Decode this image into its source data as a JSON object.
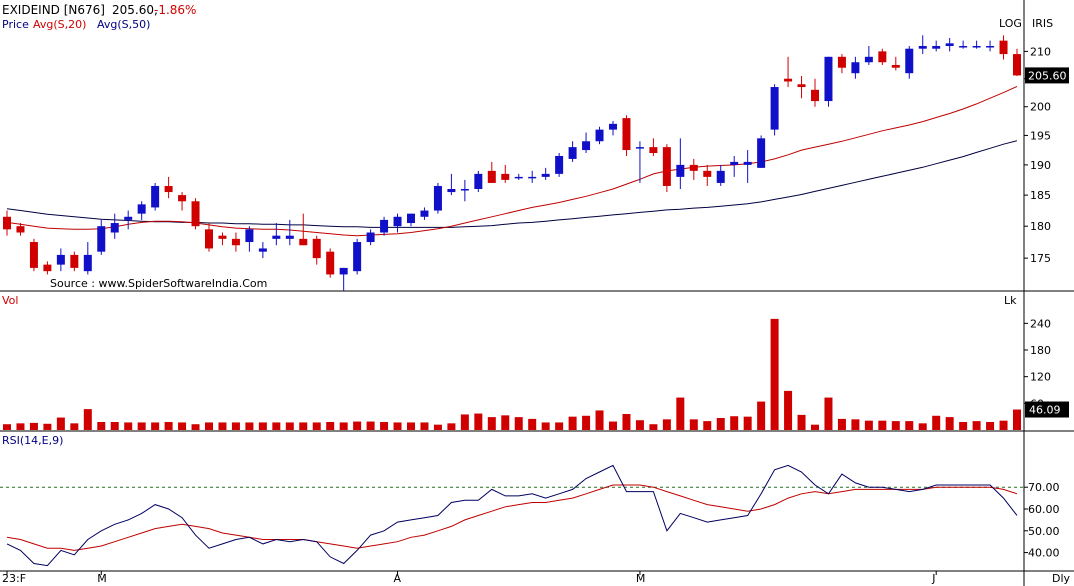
{
  "header": {
    "symbol": "EXIDEIND [N676]",
    "price": "205.60,",
    "change": "-1.86%",
    "legend_price": "Price",
    "legend_avg20": "Avg(S,20)",
    "legend_avg50": "Avg(S,50)",
    "log_label": "LOG",
    "iris_label": "IRIS",
    "source": "Source : www.SpiderSoftwareIndia.Com"
  },
  "colors": {
    "up": "#1010c8",
    "down": "#d00000",
    "avg20": "#c00000",
    "avg50": "#000040",
    "rsi": "#000060",
    "rsi_signal": "#c00000",
    "axis": "#000000",
    "label_red": "#d00000",
    "label_navy": "#000080"
  },
  "chart_data": [
    {
      "type": "candlestick",
      "panel": "price",
      "scale": "log",
      "ylim": [
        170,
        214
      ],
      "yticks": [
        175,
        180,
        185,
        190,
        195,
        200,
        205,
        210
      ],
      "last_value_label": "205.60",
      "series": [
        {
          "name": "Price",
          "ohlc": [
            [
              181.5,
              182.5,
              178.5,
              179.5
            ],
            [
              180,
              180.5,
              178.5,
              179
            ],
            [
              177.5,
              178,
              173,
              173.5
            ],
            [
              174,
              174.5,
              172.5,
              173
            ],
            [
              174,
              176.5,
              173,
              175.5
            ],
            [
              175.5,
              176,
              173,
              173.5
            ],
            [
              173,
              177.5,
              172.5,
              175.5
            ],
            [
              176,
              181,
              175.5,
              180
            ],
            [
              179,
              182,
              178,
              180.5
            ],
            [
              181,
              182.5,
              179.5,
              181.5
            ],
            [
              182,
              184,
              181,
              183.5
            ],
            [
              183,
              187,
              182.5,
              186.5
            ],
            [
              186.5,
              188,
              184.5,
              185.5
            ],
            [
              185,
              185.5,
              182.5,
              184
            ],
            [
              184,
              184.5,
              179.5,
              180
            ],
            [
              179.5,
              180.5,
              176,
              176.5
            ],
            [
              178.5,
              179,
              177,
              178
            ],
            [
              178,
              179,
              176,
              177
            ],
            [
              177.5,
              180,
              176,
              179.5
            ],
            [
              176,
              177.5,
              175,
              176.5
            ],
            [
              178,
              180.5,
              177,
              178.5
            ],
            [
              178,
              181,
              177,
              178.5
            ],
            [
              178,
              182,
              177,
              177
            ],
            [
              178,
              178.5,
              174,
              175
            ],
            [
              176,
              176.5,
              172,
              172.5
            ],
            [
              172.5,
              173.5,
              170,
              173.5
            ],
            [
              173,
              178,
              172.5,
              177.5
            ],
            [
              177.5,
              179.5,
              177,
              179
            ],
            [
              179,
              181.5,
              178.5,
              181
            ],
            [
              180,
              182,
              179,
              181.5
            ],
            [
              180.5,
              182,
              180,
              182
            ],
            [
              181.5,
              183,
              181,
              182.5
            ],
            [
              182.5,
              187,
              182,
              186.5
            ],
            [
              185.5,
              188.5,
              185,
              186
            ],
            [
              186,
              187.5,
              184,
              186
            ],
            [
              186,
              189,
              185.5,
              188.5
            ],
            [
              189,
              190.5,
              187,
              187
            ],
            [
              188.5,
              190,
              187,
              187.5
            ],
            [
              188,
              188.5,
              187.5,
              188
            ],
            [
              188,
              189,
              187,
              188
            ],
            [
              188,
              189.5,
              187.5,
              188.5
            ],
            [
              188.5,
              192,
              188,
              191.5
            ],
            [
              191,
              194,
              190.5,
              193
            ],
            [
              192.5,
              195.5,
              192,
              194
            ],
            [
              194,
              196.5,
              193.5,
              196
            ],
            [
              196,
              197.5,
              195,
              197
            ],
            [
              198,
              198.5,
              191.5,
              192.5
            ],
            [
              193,
              194,
              187,
              193
            ],
            [
              193,
              194.5,
              191.5,
              192
            ],
            [
              193,
              193.5,
              185.5,
              186.5
            ],
            [
              188,
              194.5,
              186,
              190
            ],
            [
              190,
              191,
              187.5,
              189
            ],
            [
              189,
              190,
              186.5,
              188
            ],
            [
              187,
              190,
              186.5,
              189
            ],
            [
              190,
              191.5,
              188,
              190.5
            ],
            [
              190,
              192.5,
              187,
              190.5
            ],
            [
              189.5,
              195,
              189.5,
              194.5
            ],
            [
              196,
              204,
              195,
              203.5
            ],
            [
              205,
              209,
              203.5,
              204.5
            ],
            [
              204,
              205.5,
              201.5,
              203.5
            ],
            [
              203,
              205,
              200,
              201
            ],
            [
              201,
              209,
              200,
              209
            ],
            [
              209,
              209.5,
              206,
              207
            ],
            [
              206,
              209,
              205,
              208
            ],
            [
              208,
              211,
              207.5,
              209
            ],
            [
              210,
              210.5,
              207.5,
              208
            ],
            [
              207.5,
              209,
              206.5,
              207
            ],
            [
              206,
              211,
              205,
              210.5
            ],
            [
              210.5,
              213,
              209.5,
              211
            ],
            [
              210.5,
              212,
              210,
              211
            ],
            [
              211,
              212.5,
              210,
              211.5
            ],
            [
              211,
              212,
              210.5,
              211
            ],
            [
              211,
              212,
              210.5,
              211
            ],
            [
              211,
              212,
              210,
              211
            ],
            [
              212,
              213,
              208.5,
              209.5
            ],
            [
              209.5,
              210.5,
              205.5,
              205.6
            ]
          ]
        },
        {
          "name": "Avg(S,20)",
          "values": [
            180.6,
            180.3,
            180.0,
            179.7,
            179.6,
            179.5,
            179.5,
            179.6,
            179.9,
            180.3,
            180.6,
            180.8,
            180.8,
            180.7,
            180.5,
            180.2,
            179.9,
            179.7,
            179.6,
            179.5,
            179.5,
            179.4,
            179.2,
            179.0,
            178.8,
            178.6,
            178.5,
            178.6,
            178.7,
            178.8,
            179.0,
            179.3,
            179.6,
            180.0,
            180.5,
            181.0,
            181.5,
            182.0,
            182.5,
            183.0,
            183.4,
            183.8,
            184.3,
            184.8,
            185.4,
            186.0,
            186.8,
            187.6,
            188.5,
            189.0,
            189.3,
            189.6,
            189.8,
            189.9,
            190.0,
            190.2,
            190.5,
            191.0,
            191.7,
            192.5,
            193.0,
            193.5,
            194.0,
            194.6,
            195.2,
            195.8,
            196.3,
            196.8,
            197.4,
            198.1,
            198.8,
            199.6,
            200.5,
            201.5,
            202.5,
            203.6
          ]
        },
        {
          "name": "Avg(S,50)",
          "values": [
            182.8,
            182.5,
            182.2,
            181.9,
            181.7,
            181.5,
            181.3,
            181.1,
            181.0,
            180.9,
            180.8,
            180.7,
            180.7,
            180.6,
            180.6,
            180.5,
            180.5,
            180.4,
            180.4,
            180.3,
            180.3,
            180.2,
            180.2,
            180.1,
            180.0,
            179.9,
            179.9,
            179.8,
            179.8,
            179.8,
            179.8,
            179.8,
            179.8,
            179.8,
            179.9,
            180.0,
            180.1,
            180.3,
            180.5,
            180.6,
            180.8,
            181.0,
            181.2,
            181.4,
            181.6,
            181.8,
            182.0,
            182.2,
            182.4,
            182.6,
            182.7,
            182.9,
            183.0,
            183.2,
            183.4,
            183.6,
            183.9,
            184.3,
            184.7,
            185.1,
            185.6,
            186.1,
            186.6,
            187.1,
            187.6,
            188.1,
            188.6,
            189.1,
            189.6,
            190.2,
            190.8,
            191.4,
            192.1,
            192.8,
            193.5,
            194.1
          ]
        }
      ]
    },
    {
      "type": "bar",
      "panel": "volume",
      "unit_label": "Lk",
      "ylim": [
        0,
        270
      ],
      "yticks": [
        60,
        120,
        180,
        240
      ],
      "last_value_label": "46.09",
      "series": [
        {
          "name": "Vol",
          "values": [
            13,
            15,
            16,
            14,
            28,
            15,
            47,
            18,
            18,
            17,
            17,
            17,
            18,
            17,
            13,
            17,
            17,
            17,
            17,
            17,
            17,
            17,
            17,
            17,
            18,
            17,
            19,
            19,
            18,
            17,
            17,
            17,
            12,
            15,
            35,
            37,
            29,
            33,
            29,
            25,
            17,
            17,
            30,
            32,
            44,
            19,
            36,
            22,
            13,
            24,
            73,
            24,
            20,
            27,
            31,
            30,
            64,
            250,
            88,
            34,
            12,
            73,
            25,
            24,
            21,
            21,
            20,
            20,
            15,
            32,
            29,
            18,
            20,
            18,
            21,
            46.09
          ]
        }
      ]
    },
    {
      "type": "line",
      "panel": "rsi",
      "title": "RSI(14,E,9)",
      "ylim": [
        32,
        88
      ],
      "yticks": [
        40,
        50,
        60,
        70
      ],
      "ytick_labels": [
        "40.00",
        "50.00",
        "60.00",
        "70.00"
      ],
      "reference_line": 70,
      "x_labels": [
        {
          "index": 0,
          "label": "23:F"
        },
        {
          "index": 7,
          "label": "M"
        },
        {
          "index": 29,
          "label": "A"
        },
        {
          "index": 47,
          "label": "M"
        },
        {
          "index": 69,
          "label": "J"
        }
      ],
      "period_label": "Dly",
      "series": [
        {
          "name": "RSI",
          "values": [
            44,
            41,
            35,
            34,
            41,
            39,
            46,
            50,
            53,
            55,
            58,
            62,
            60,
            56,
            48,
            42,
            44,
            46,
            47,
            44,
            46,
            45,
            46,
            45,
            38,
            35,
            41,
            48,
            50,
            54,
            55,
            56,
            57,
            63,
            64,
            64,
            69,
            66,
            66,
            67,
            65,
            67,
            69,
            74,
            77,
            80,
            68,
            68,
            68,
            50,
            58,
            56,
            54,
            55,
            56,
            57,
            67,
            78,
            80,
            77,
            71,
            67,
            76,
            72,
            70,
            70,
            69,
            68,
            69,
            71,
            71,
            71,
            71,
            71,
            65,
            57
          ]
        },
        {
          "name": "Signal",
          "values": [
            47,
            46,
            44,
            42,
            42,
            41,
            42,
            43,
            45,
            47,
            49,
            51,
            52,
            53,
            52,
            51,
            49,
            48,
            47,
            46,
            46,
            46,
            46,
            45,
            44,
            43,
            42,
            43,
            44,
            45,
            47,
            48,
            50,
            52,
            55,
            57,
            59,
            61,
            62,
            63,
            63,
            64,
            65,
            67,
            69,
            71,
            71,
            71,
            70,
            68,
            66,
            64,
            62,
            61,
            60,
            59,
            60,
            62,
            65,
            67,
            68,
            67,
            68,
            69,
            69,
            69,
            69,
            69,
            69,
            70,
            70,
            70,
            70,
            70,
            69,
            67
          ]
        }
      ]
    }
  ]
}
